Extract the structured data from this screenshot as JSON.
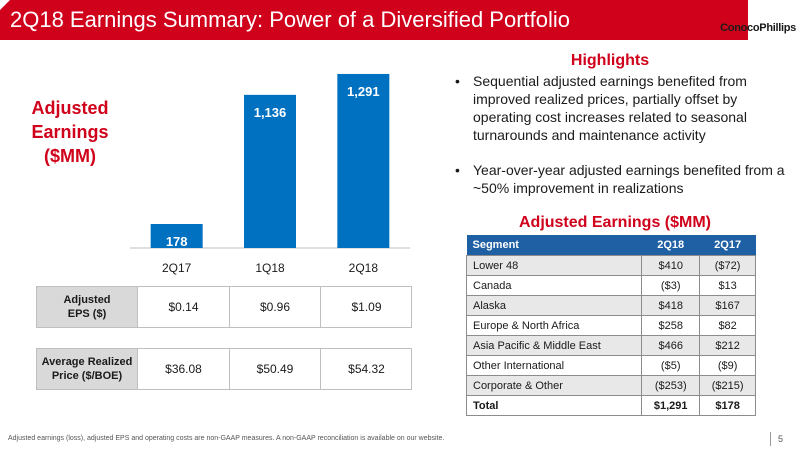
{
  "header": {
    "title": "2Q18 Earnings Summary: Power of a Diversified Portfolio",
    "logo_text": "ConocoPhillips",
    "brand_color": "#d0011b"
  },
  "chart_label": [
    "Adjusted",
    "Earnings",
    "($MM)"
  ],
  "chart_data": {
    "type": "bar",
    "categories": [
      "2Q17",
      "1Q18",
      "2Q18"
    ],
    "values": [
      178,
      1136,
      1291
    ],
    "data_labels": [
      "178",
      "1,136",
      "1,291"
    ],
    "ylim": [
      0,
      1350
    ],
    "bar_color": "#0070c0",
    "grid": false
  },
  "metrics": [
    {
      "label_line1": "Adjusted",
      "label_line2": "EPS ($)",
      "values": [
        "$0.14",
        "$0.96",
        "$1.09"
      ]
    },
    {
      "label_line1": "Average Realized",
      "label_line2": "Price ($/BOE)",
      "values": [
        "$36.08",
        "$50.49",
        "$54.32"
      ]
    }
  ],
  "highlights": {
    "title": "Highlights",
    "bullet_symbol": "•",
    "items": [
      "Sequential adjusted earnings benefited from improved realized prices, partially offset by operating cost increases related to seasonal turnarounds and maintenance activity",
      "Year-over-year adjusted earnings benefited from a ~50% improvement in realizations"
    ]
  },
  "segment_table": {
    "title": "Adjusted Earnings ($MM)",
    "header_color": "#1f5fa3",
    "columns": [
      "Segment",
      "2Q18",
      "2Q17"
    ],
    "rows": [
      [
        "Lower 48",
        "$410",
        "($72)"
      ],
      [
        "Canada",
        "($3)",
        "$13"
      ],
      [
        "Alaska",
        "$418",
        "$167"
      ],
      [
        "Europe & North Africa",
        "$258",
        "$82"
      ],
      [
        "Asia Pacific & Middle East",
        "$466",
        "$212"
      ],
      [
        "Other International",
        "($5)",
        "($9)"
      ],
      [
        "Corporate & Other",
        "($253)",
        "($215)"
      ],
      [
        "Total",
        "$1,291",
        "$178"
      ]
    ]
  },
  "footer": {
    "note": "Adjusted earnings (loss), adjusted EPS and operating costs are non-GAAP measures. A non-GAAP reconciliation is available on our website.",
    "page_number": "5"
  }
}
